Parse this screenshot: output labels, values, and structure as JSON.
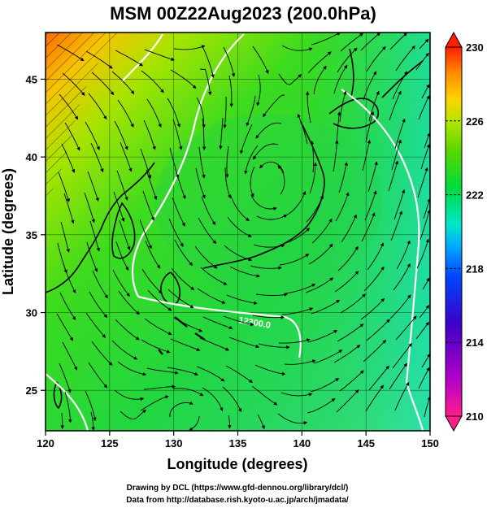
{
  "title": "MSM 00Z22Aug2023 (200.0hPa)",
  "xaxis": {
    "label": "Longitude (degrees)",
    "range": [
      120,
      150
    ],
    "ticks": [
      "120",
      "125",
      "130",
      "135",
      "140",
      "145",
      "150"
    ],
    "tick_values": [
      120,
      125,
      130,
      135,
      140,
      145,
      150
    ]
  },
  "yaxis": {
    "label": "Latitude  (degrees)",
    "range": [
      22.4,
      48.0
    ],
    "ticks": [
      "25",
      "30",
      "35",
      "40",
      "45"
    ],
    "tick_values": [
      25,
      30,
      35,
      40,
      45
    ]
  },
  "colorbar": {
    "min": 210,
    "max": 230,
    "labels": [
      "230",
      "226",
      "222",
      "218",
      "214",
      "210"
    ],
    "label_values": [
      230,
      226,
      222,
      218,
      214,
      210
    ],
    "colors": [
      "#ff1e8c",
      "#b400c8",
      "#3c00c8",
      "#0046ff",
      "#00aaff",
      "#00e6c8",
      "#00dc3c",
      "#5ad700",
      "#b4e600",
      "#ffd200",
      "#ff8c00",
      "#ff1e00"
    ]
  },
  "contour_labels": [
    "12300.0"
  ],
  "credits": {
    "line1": "Drawing by DCL (https://www.gfd-dennou.org/library/dcl/)",
    "line2": "Data from http://database.rish.kyoto-u.ac.jp/arch/jmadata/"
  }
}
